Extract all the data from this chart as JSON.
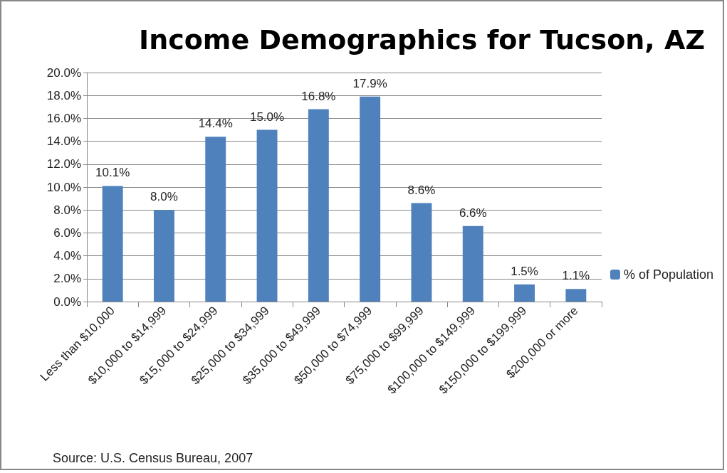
{
  "chart_data": {
    "type": "bar",
    "title": "Income Demographics for Tucson, AZ",
    "categories": [
      "Less than $10,000",
      "$10,000 to $14,999",
      "$15,000 to $24,999",
      "$25,000 to $34,999",
      "$35,000 to $49,999",
      "$50,000 to $74,999",
      "$75,000 to $99,999",
      "$100,000 to $149,999",
      "$150,000 to $199,999",
      "$200,000 or more"
    ],
    "series": [
      {
        "name": "% of Population",
        "color": "#4f81bd",
        "values": [
          10.1,
          8.0,
          14.4,
          15.0,
          16.8,
          17.9,
          8.6,
          6.6,
          1.5,
          1.1
        ],
        "value_labels": [
          "10.1%",
          "8.0%",
          "14.4%",
          "15.0%",
          "16.8%",
          "17.9%",
          "8.6%",
          "6.6%",
          "1.5%",
          "1.1%"
        ]
      }
    ],
    "ylim": [
      0,
      20
    ],
    "yticks": [
      {
        "value": 0,
        "label": "0.0%"
      },
      {
        "value": 2,
        "label": "2.0%"
      },
      {
        "value": 4,
        "label": "4.0%"
      },
      {
        "value": 6,
        "label": "6.0%"
      },
      {
        "value": 8,
        "label": "8.0%"
      },
      {
        "value": 10,
        "label": "10.0%"
      },
      {
        "value": 12,
        "label": "12.0%"
      },
      {
        "value": 14,
        "label": "14.0%"
      },
      {
        "value": 16,
        "label": "16.0%"
      },
      {
        "value": 18,
        "label": "18.0%"
      },
      {
        "value": 20,
        "label": "20.0%"
      }
    ],
    "grid": "y",
    "legend": "right",
    "annotations": [
      "Source: U.S. Census Bureau, 2007"
    ]
  }
}
